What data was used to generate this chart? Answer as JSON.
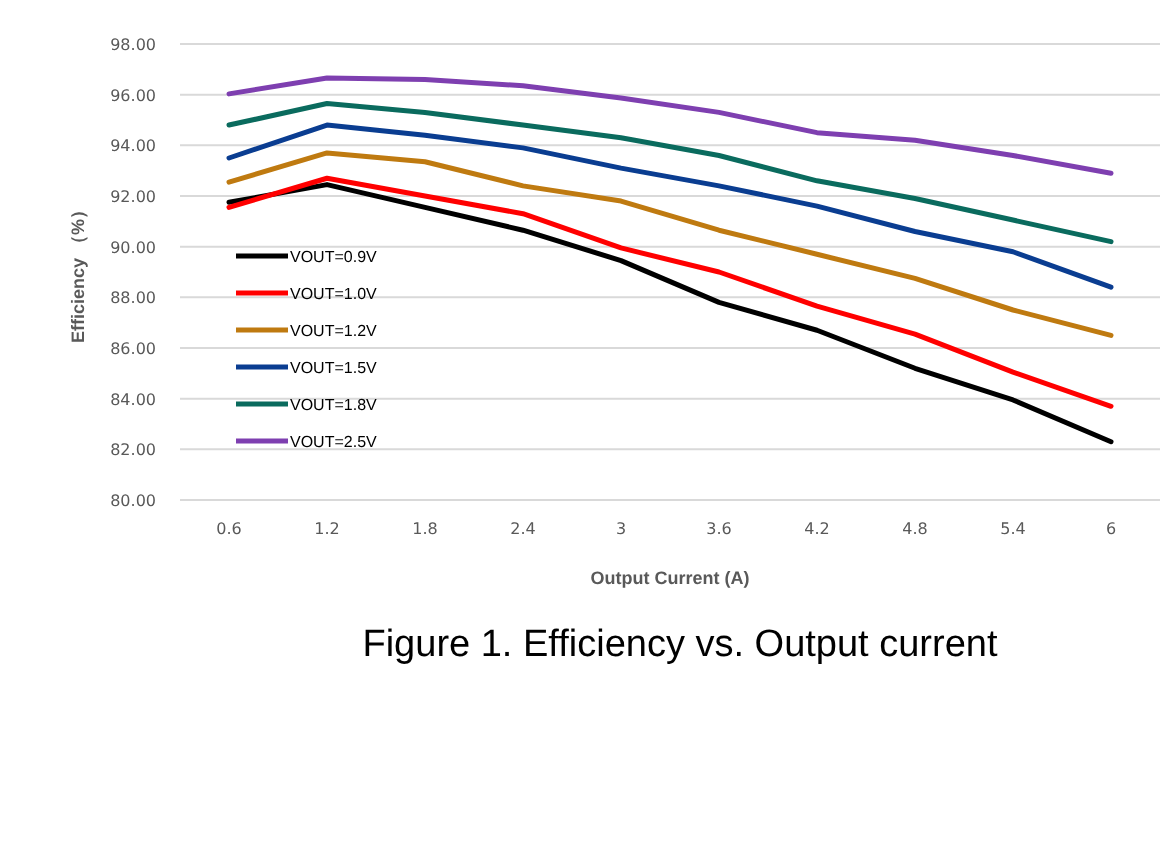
{
  "chart_data": {
    "type": "line",
    "xlabel": "Output Current (A)",
    "ylabel": "Efficiency （%）",
    "categories": [
      "0.6",
      "1.2",
      "1.8",
      "2.4",
      "3",
      "3.6",
      "4.2",
      "4.8",
      "5.4",
      "6"
    ],
    "series": [
      {
        "name": "VOUT=0.9V",
        "color": "#000000",
        "values": [
          91.75,
          92.45,
          91.55,
          90.65,
          89.45,
          87.8,
          86.7,
          85.2,
          83.95,
          82.3
        ]
      },
      {
        "name": "VOUT=1.0V",
        "color": "#ff0000",
        "values": [
          91.55,
          92.7,
          92.0,
          91.3,
          89.95,
          89.0,
          87.65,
          86.55,
          85.05,
          83.7
        ]
      },
      {
        "name": "VOUT=1.2V",
        "color": "#bf7a10",
        "values": [
          92.55,
          93.7,
          93.35,
          92.4,
          91.8,
          90.65,
          89.7,
          88.75,
          87.5,
          86.5
        ]
      },
      {
        "name": "VOUT=1.5V",
        "color": "#0a3d91",
        "values": [
          93.5,
          94.8,
          94.4,
          93.9,
          93.1,
          92.4,
          91.6,
          90.6,
          89.8,
          88.4
        ]
      },
      {
        "name": "VOUT=1.8V",
        "color": "#0a6b5e",
        "values": [
          94.8,
          95.65,
          95.3,
          94.8,
          94.3,
          93.6,
          92.6,
          91.9,
          91.05,
          90.2
        ]
      },
      {
        "name": "VOUT=2.5V",
        "color": "#7e3fb0",
        "values": [
          96.03,
          96.66,
          96.6,
          96.35,
          95.87,
          95.3,
          94.5,
          94.2,
          93.6,
          92.9
        ]
      }
    ],
    "ylim": [
      80,
      98
    ],
    "yticks": [
      {
        "value": 80,
        "label": "80.00"
      },
      {
        "value": 82,
        "label": "82.00"
      },
      {
        "value": 84,
        "label": "84.00"
      },
      {
        "value": 86,
        "label": "86.00"
      },
      {
        "value": 88,
        "label": "88.00"
      },
      {
        "value": 90,
        "label": "90.00"
      },
      {
        "value": 92,
        "label": "92.00"
      },
      {
        "value": 94,
        "label": "94.00"
      },
      {
        "value": 96,
        "label": "96.00"
      },
      {
        "value": 98,
        "label": "98.00"
      }
    ],
    "grid": "y",
    "legend": "bottom left",
    "marker": "none",
    "line_style": "solid",
    "annotations": [
      "Figure 1. Efficiency vs. Output current"
    ]
  }
}
